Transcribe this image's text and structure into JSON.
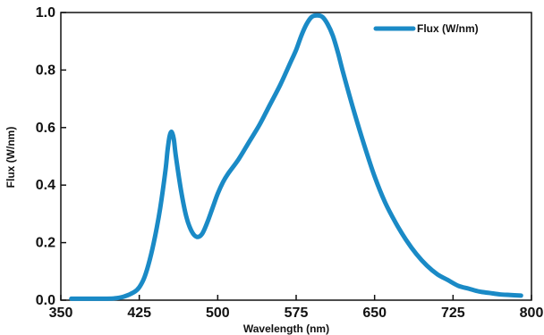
{
  "chart_data": {
    "type": "line",
    "xlabel": "Wavelength (nm)",
    "ylabel": "Flux (W/nm)",
    "xlim": [
      350,
      800
    ],
    "ylim": [
      0,
      1.0
    ],
    "x_ticks": [
      350,
      425,
      500,
      575,
      650,
      725,
      800
    ],
    "y_ticks": [
      0.0,
      0.2,
      0.4,
      0.6,
      0.8,
      1.0
    ],
    "x_tick_labels": [
      "350",
      "425",
      "500",
      "575",
      "650",
      "725",
      "800"
    ],
    "y_tick_labels": [
      "0.0",
      "0.2",
      "0.4",
      "0.6",
      "0.8",
      "1.0"
    ],
    "grid": false,
    "legend_position": "top-right",
    "series": [
      {
        "name": "Flux (W/nm)",
        "color": "#1a8ac6",
        "x": [
          360,
          380,
          400,
          410,
          420,
          425,
          430,
          435,
          440,
          445,
          450,
          452,
          454,
          456,
          458,
          460,
          465,
          470,
          475,
          480,
          485,
          490,
          495,
          500,
          505,
          510,
          520,
          530,
          540,
          550,
          560,
          570,
          575,
          580,
          585,
          590,
          595,
          600,
          605,
          610,
          615,
          620,
          630,
          640,
          650,
          660,
          670,
          680,
          690,
          700,
          710,
          720,
          730,
          740,
          750,
          760,
          770,
          780,
          790
        ],
        "y": [
          0.005,
          0.005,
          0.006,
          0.012,
          0.028,
          0.045,
          0.08,
          0.14,
          0.22,
          0.32,
          0.45,
          0.52,
          0.57,
          0.585,
          0.56,
          0.5,
          0.38,
          0.29,
          0.24,
          0.22,
          0.23,
          0.27,
          0.32,
          0.37,
          0.41,
          0.44,
          0.49,
          0.55,
          0.61,
          0.68,
          0.75,
          0.83,
          0.87,
          0.92,
          0.96,
          0.985,
          0.99,
          0.985,
          0.96,
          0.92,
          0.86,
          0.79,
          0.66,
          0.54,
          0.43,
          0.34,
          0.27,
          0.21,
          0.16,
          0.12,
          0.09,
          0.07,
          0.05,
          0.04,
          0.03,
          0.025,
          0.02,
          0.018,
          0.016
        ]
      }
    ]
  }
}
